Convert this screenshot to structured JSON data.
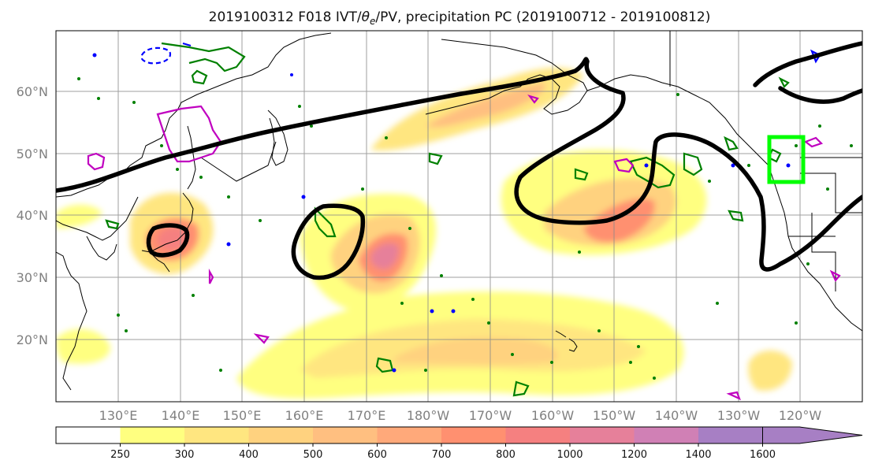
{
  "title_main": "2019100312 F018 IVT/",
  "title_theta": "θ",
  "title_sub": "e",
  "title_rest": "/PV, precipitation PC (2019100712 - 2019100812)",
  "map": {
    "lat_labels": [
      "60°N",
      "50°N",
      "40°N",
      "30°N",
      "20°N"
    ],
    "lon_labels": [
      "130°E",
      "140°E",
      "150°E",
      "160°E",
      "170°E",
      "180°W",
      "170°W",
      "160°W",
      "150°W",
      "140°W",
      "130°W",
      "120°W"
    ],
    "colors": {
      "theta_e_contour": "#000000",
      "pv_contour": "#008000",
      "pv_negative": "#0000ff",
      "precip_pc": "#c000c0",
      "target_box": "#00ff00"
    }
  },
  "colorbar": {
    "ticks": [
      "250",
      "300",
      "400",
      "500",
      "600",
      "700",
      "800",
      "1000",
      "1200",
      "1400",
      "1600"
    ],
    "colors": [
      "#ffffff",
      "#ffff80",
      "#ffe680",
      "#ffd27f",
      "#ffbf80",
      "#ffa97a",
      "#ff9070",
      "#f58080",
      "#e6809a",
      "#d080b5",
      "#a77fc4",
      "#a77fc4"
    ]
  }
}
